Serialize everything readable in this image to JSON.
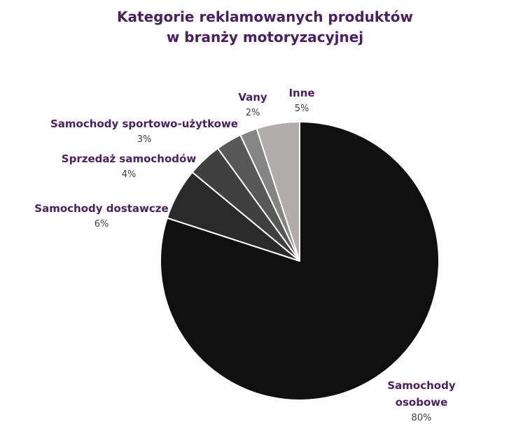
{
  "chart_data": {
    "type": "pie",
    "title_lines": [
      "Kategorie reklamowanych produktów",
      "w branży motoryzacyjnej"
    ],
    "start_angle_deg": 0,
    "direction": "clockwise",
    "legend": "none",
    "slices": [
      {
        "label": "Samochody osobowe",
        "label_lines": [
          "Samochody",
          "osobowe"
        ],
        "value": 80,
        "value_label": "80%",
        "color": "#111011"
      },
      {
        "label": "Samochody dostawcze",
        "label_lines": [
          "Samochody dostawcze"
        ],
        "value": 6,
        "value_label": "6%",
        "color": "#2b2a2b"
      },
      {
        "label": "Sprzedaż samochodów",
        "label_lines": [
          "Sprzedaż samochodów"
        ],
        "value": 4,
        "value_label": "4%",
        "color": "#404040"
      },
      {
        "label": "Samochody sportowo-użytkowe",
        "label_lines": [
          "Samochody sportowo-użytkowe"
        ],
        "value": 3,
        "value_label": "3%",
        "color": "#585858"
      },
      {
        "label": "Vany",
        "label_lines": [
          "Vany"
        ],
        "value": 2,
        "value_label": "2%",
        "color": "#858585"
      },
      {
        "label": "Inne",
        "label_lines": [
          "Inne"
        ],
        "value": 5,
        "value_label": "5%",
        "color": "#b1adad"
      }
    ]
  }
}
